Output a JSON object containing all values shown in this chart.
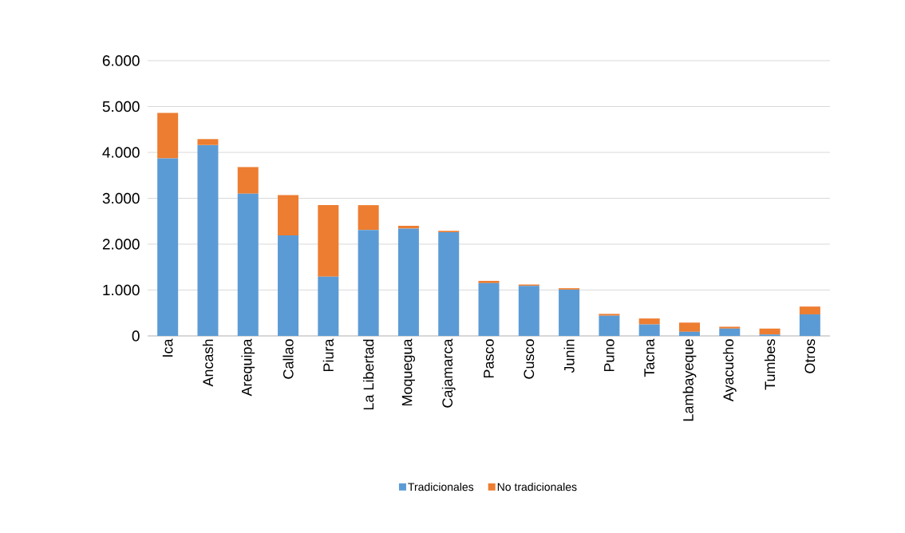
{
  "chart_data": {
    "type": "bar",
    "stacked": true,
    "categories": [
      "Ica",
      "Ancash",
      "Arequipa",
      "Callao",
      "Piura",
      "La Libertad",
      "Moquegua",
      "Cajamarca",
      "Pasco",
      "Cusco",
      "Junin",
      "Puno",
      "Tacna",
      "Lambayeque",
      "Ayacucho",
      "Tumbes",
      "Otros"
    ],
    "series": [
      {
        "name": "Tradicionales",
        "color": "#5b9bd5",
        "values": [
          3870,
          4160,
          3100,
          2190,
          1290,
          2310,
          2340,
          2260,
          1150,
          1090,
          1010,
          440,
          250,
          90,
          160,
          30,
          470
        ]
      },
      {
        "name": "No tradicionales",
        "color": "#ed7d31",
        "values": [
          990,
          130,
          580,
          880,
          1560,
          540,
          60,
          30,
          50,
          30,
          30,
          40,
          130,
          200,
          40,
          130,
          170
        ]
      }
    ],
    "ylim": [
      0,
      6000
    ],
    "yticks": [
      0,
      {
        "value": 1000,
        "label": "1.000"
      },
      {
        "value": 2000,
        "label": "2.000"
      },
      {
        "value": 3000,
        "label": "3.000"
      },
      {
        "value": 4000,
        "label": "4.000"
      },
      {
        "value": 5000,
        "label": "5.000"
      },
      {
        "value": 6000,
        "label": "6.000"
      }
    ],
    "grid": "y",
    "legend": "bottom"
  }
}
